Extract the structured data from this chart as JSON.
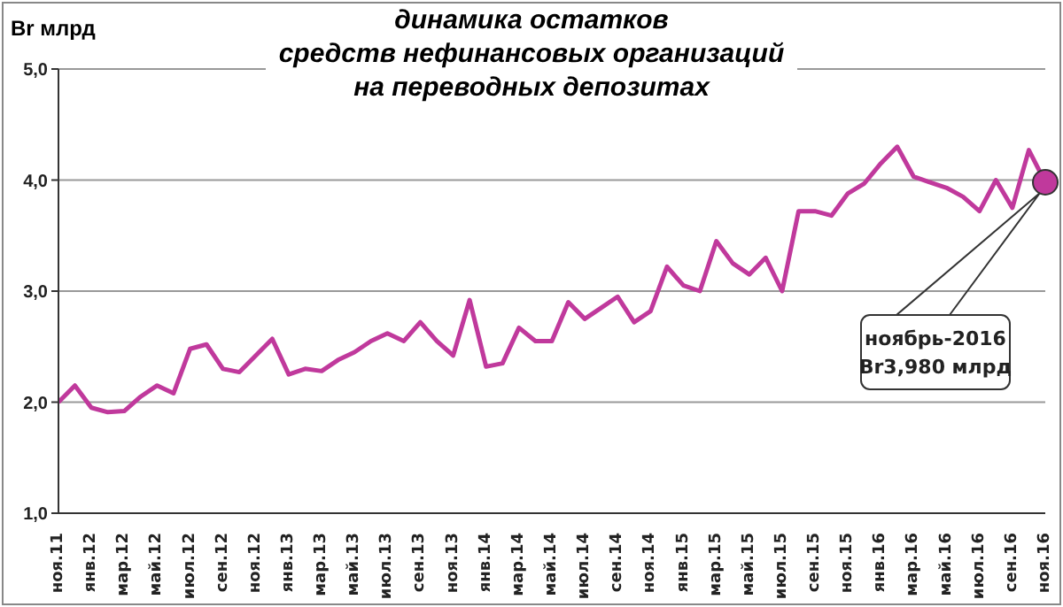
{
  "chart_data": {
    "type": "line",
    "title": "динамика остатков\nсредств нефинансовых организаций\nна переводных депозитах",
    "ylabel": "Br млрд",
    "categories": [
      "ноя.11",
      null,
      "янв.12",
      null,
      "мар.12",
      null,
      "май.12",
      null,
      "июл.12",
      null,
      "сен.12",
      null,
      "ноя.12",
      null,
      "янв.13",
      null,
      "мар.13",
      null,
      "май.13",
      null,
      "июл.13",
      null,
      "сен.13",
      null,
      "ноя.13",
      null,
      "янв.14",
      null,
      "мар.14",
      null,
      "май.14",
      null,
      "июл.14",
      null,
      "сен.14",
      null,
      "ноя.14",
      null,
      "янв.15",
      null,
      "мар.15",
      null,
      "май.15",
      null,
      "июл.15",
      null,
      "сен.15",
      null,
      "ноя.15",
      null,
      "янв.16",
      null,
      "мар.16",
      null,
      "май.16",
      null,
      "июл.16",
      null,
      "сен.16",
      null,
      "ноя.16"
    ],
    "series": [
      {
        "color": "#c0399c",
        "values": [
          2.0,
          2.15,
          1.95,
          1.91,
          1.92,
          2.05,
          2.15,
          2.08,
          2.48,
          2.52,
          2.3,
          2.27,
          2.42,
          2.57,
          2.25,
          2.3,
          2.28,
          2.38,
          2.45,
          2.55,
          2.62,
          2.55,
          2.72,
          2.55,
          2.42,
          2.92,
          2.32,
          2.35,
          2.67,
          2.55,
          2.55,
          2.9,
          2.75,
          2.85,
          2.95,
          2.72,
          2.82,
          3.22,
          3.05,
          3.0,
          3.45,
          3.25,
          3.15,
          3.3,
          3.0,
          3.72,
          3.72,
          3.68,
          3.88,
          3.97,
          4.15,
          4.3,
          4.03,
          3.98,
          3.93,
          3.85,
          3.72,
          4.0,
          3.75,
          4.27,
          3.98
        ]
      }
    ],
    "ylim": [
      1,
      5
    ],
    "yticks": [
      {
        "value": 1,
        "label": "1,0"
      },
      {
        "value": 2,
        "label": "2,0"
      },
      {
        "value": 3,
        "label": "3,0"
      },
      {
        "value": 4,
        "label": "4,0"
      },
      {
        "value": 5,
        "label": "5,0"
      }
    ],
    "grid": "y",
    "marker": "none",
    "line_style": "solid",
    "annotations": [
      "ноябрь-2016\nBr3,980 млрд"
    ]
  }
}
